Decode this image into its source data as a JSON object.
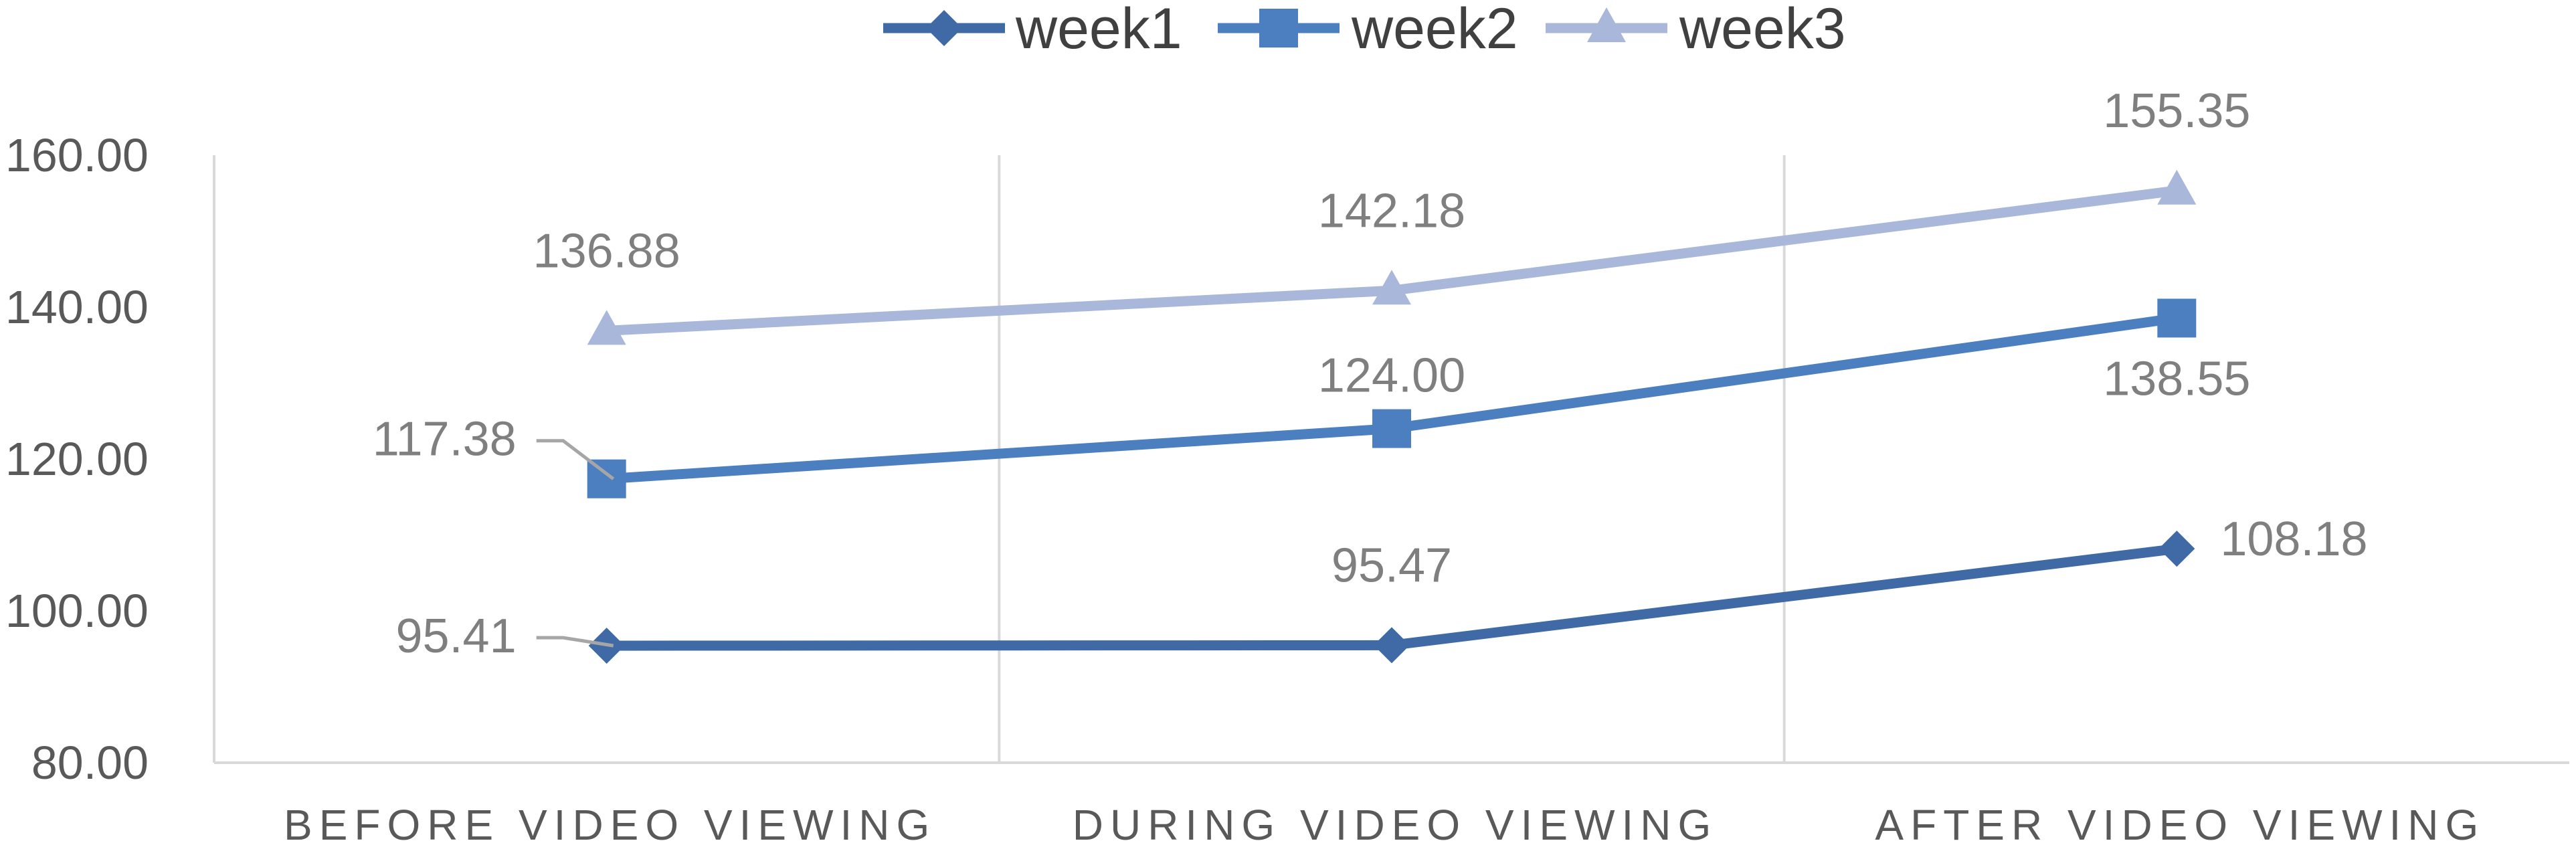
{
  "chart_data": {
    "type": "line",
    "categories": [
      "BEFORE VIDEO VIEWING",
      "DURING VIDEO VIEWING",
      "AFTER VIDEO VIEWING"
    ],
    "ylim": [
      80,
      160
    ],
    "yticks": [
      "80.00",
      "100.00",
      "120.00",
      "140.00",
      "160.00"
    ],
    "ytick_values": [
      80,
      100,
      120,
      140,
      160
    ],
    "grid": "vertical category separators",
    "legend_position": "top-center",
    "series": [
      {
        "name": "week1",
        "marker": "diamond",
        "color": "#3F6AA5",
        "values": [
          95.41,
          95.47,
          108.18
        ],
        "labels": [
          "95.41",
          "95.47",
          "108.18"
        ]
      },
      {
        "name": "week2",
        "marker": "square",
        "color": "#4C7FC0",
        "values": [
          117.38,
          124.0,
          138.55
        ],
        "labels": [
          "117.38",
          "124.00",
          "138.55"
        ]
      },
      {
        "name": "week3",
        "marker": "triangle",
        "color": "#A9B8DA",
        "values": [
          136.88,
          142.18,
          155.35
        ],
        "labels": [
          "136.88",
          "142.18",
          "155.35"
        ]
      }
    ]
  }
}
